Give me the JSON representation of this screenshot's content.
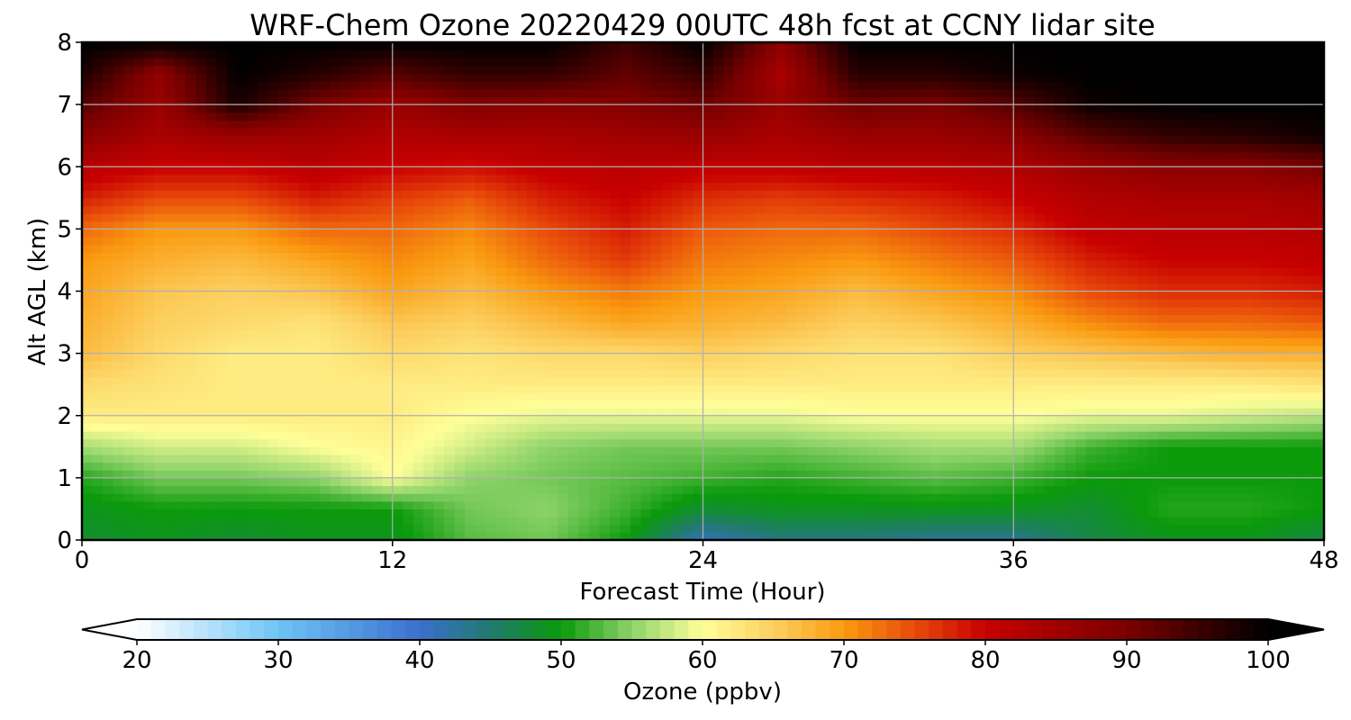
{
  "chart_data": {
    "type": "heatmap",
    "title": "WRF-Chem Ozone  20220429 00UTC 48h fcst at CCNY lidar site",
    "xlabel": "Forecast Time (Hour)",
    "ylabel": "Alt AGL (km)",
    "xlim": [
      0,
      48
    ],
    "ylim": [
      0,
      8
    ],
    "xticks": [
      "0",
      "12",
      "24",
      "36",
      "48"
    ],
    "yticks": [
      "0",
      "1",
      "2",
      "3",
      "4",
      "5",
      "6",
      "7",
      "8"
    ],
    "grid": true,
    "colorbar": {
      "label": "Ozone  (ppbv)",
      "range": [
        20,
        100
      ],
      "extend": "both",
      "ticks": [
        "20",
        "30",
        "40",
        "50",
        "60",
        "70",
        "80",
        "90",
        "100"
      ],
      "colors": [
        {
          "v": 20,
          "c": "#ffffff"
        },
        {
          "v": 30,
          "c": "#6ec4f5"
        },
        {
          "v": 40,
          "c": "#3b6fce"
        },
        {
          "v": 45,
          "c": "#217a6e"
        },
        {
          "v": 50,
          "c": "#0a9a0a"
        },
        {
          "v": 55,
          "c": "#8ed36a"
        },
        {
          "v": 60,
          "c": "#ffff99"
        },
        {
          "v": 65,
          "c": "#fcd060"
        },
        {
          "v": 70,
          "c": "#fa9a10"
        },
        {
          "v": 75,
          "c": "#e84a0a"
        },
        {
          "v": 80,
          "c": "#c80000"
        },
        {
          "v": 90,
          "c": "#7a0000"
        },
        {
          "v": 100,
          "c": "#000000"
        }
      ]
    },
    "x_hours": [
      0,
      3,
      6,
      9,
      12,
      15,
      18,
      21,
      24,
      27,
      30,
      33,
      36,
      39,
      42,
      45,
      48
    ],
    "y_km": [
      0,
      0.5,
      1,
      1.5,
      2,
      2.5,
      3,
      3.5,
      4,
      4.5,
      5,
      5.5,
      6,
      6.5,
      7,
      7.5,
      8
    ],
    "ozone_ppbv": [
      [
        48,
        49,
        48,
        49,
        49,
        53,
        54,
        50,
        41,
        44,
        44,
        43,
        43,
        47,
        49,
        49,
        47
      ],
      [
        49,
        50,
        50,
        50,
        50,
        54,
        55,
        52,
        48,
        49,
        49,
        49,
        49,
        48,
        51,
        51,
        50
      ],
      [
        51,
        54,
        54,
        55,
        60,
        55,
        54,
        53,
        52,
        51,
        52,
        53,
        52,
        50,
        50,
        50,
        50
      ],
      [
        56,
        58,
        58,
        60,
        61,
        58,
        55,
        54,
        54,
        54,
        55,
        56,
        56,
        52,
        50,
        50,
        50
      ],
      [
        62,
        62,
        62,
        62,
        62,
        60,
        59,
        59,
        59,
        59,
        60,
        60,
        60,
        59,
        59,
        58,
        57
      ],
      [
        64,
        63,
        62,
        62,
        62,
        62,
        62,
        62,
        62,
        62,
        62,
        62,
        62,
        62,
        62,
        62,
        63
      ],
      [
        67,
        64,
        62,
        62,
        64,
        63,
        64,
        64,
        65,
        64,
        63,
        63,
        65,
        66,
        67,
        68,
        68
      ],
      [
        68,
        65,
        64,
        63,
        66,
        65,
        67,
        69,
        68,
        67,
        65,
        66,
        68,
        71,
        73,
        73,
        74
      ],
      [
        69,
        66,
        65,
        66,
        69,
        67,
        70,
        72,
        70,
        69,
        67,
        69,
        71,
        75,
        77,
        77,
        78
      ],
      [
        70,
        68,
        67,
        69,
        71,
        69,
        73,
        76,
        72,
        71,
        70,
        72,
        74,
        78,
        80,
        80,
        81
      ],
      [
        73,
        70,
        70,
        73,
        73,
        71,
        75,
        78,
        74,
        73,
        73,
        75,
        77,
        81,
        82,
        82,
        83
      ],
      [
        78,
        75,
        75,
        78,
        76,
        74,
        78,
        80,
        77,
        76,
        77,
        78,
        80,
        83,
        84,
        84,
        85
      ],
      [
        82,
        80,
        80,
        82,
        80,
        79,
        81,
        82,
        81,
        81,
        82,
        82,
        83,
        86,
        88,
        88,
        90
      ],
      [
        88,
        84,
        86,
        85,
        83,
        84,
        84,
        85,
        86,
        84,
        86,
        86,
        88,
        93,
        96,
        97,
        99
      ],
      [
        93,
        86,
        98,
        90,
        86,
        89,
        88,
        89,
        91,
        86,
        91,
        90,
        93,
        99,
        100,
        100,
        100
      ],
      [
        98,
        87,
        100,
        97,
        93,
        96,
        96,
        92,
        96,
        84,
        97,
        97,
        99,
        100,
        100,
        100,
        100
      ],
      [
        100,
        100,
        100,
        100,
        100,
        100,
        100,
        95,
        100,
        88,
        100,
        100,
        100,
        100,
        100,
        100,
        100
      ]
    ]
  }
}
